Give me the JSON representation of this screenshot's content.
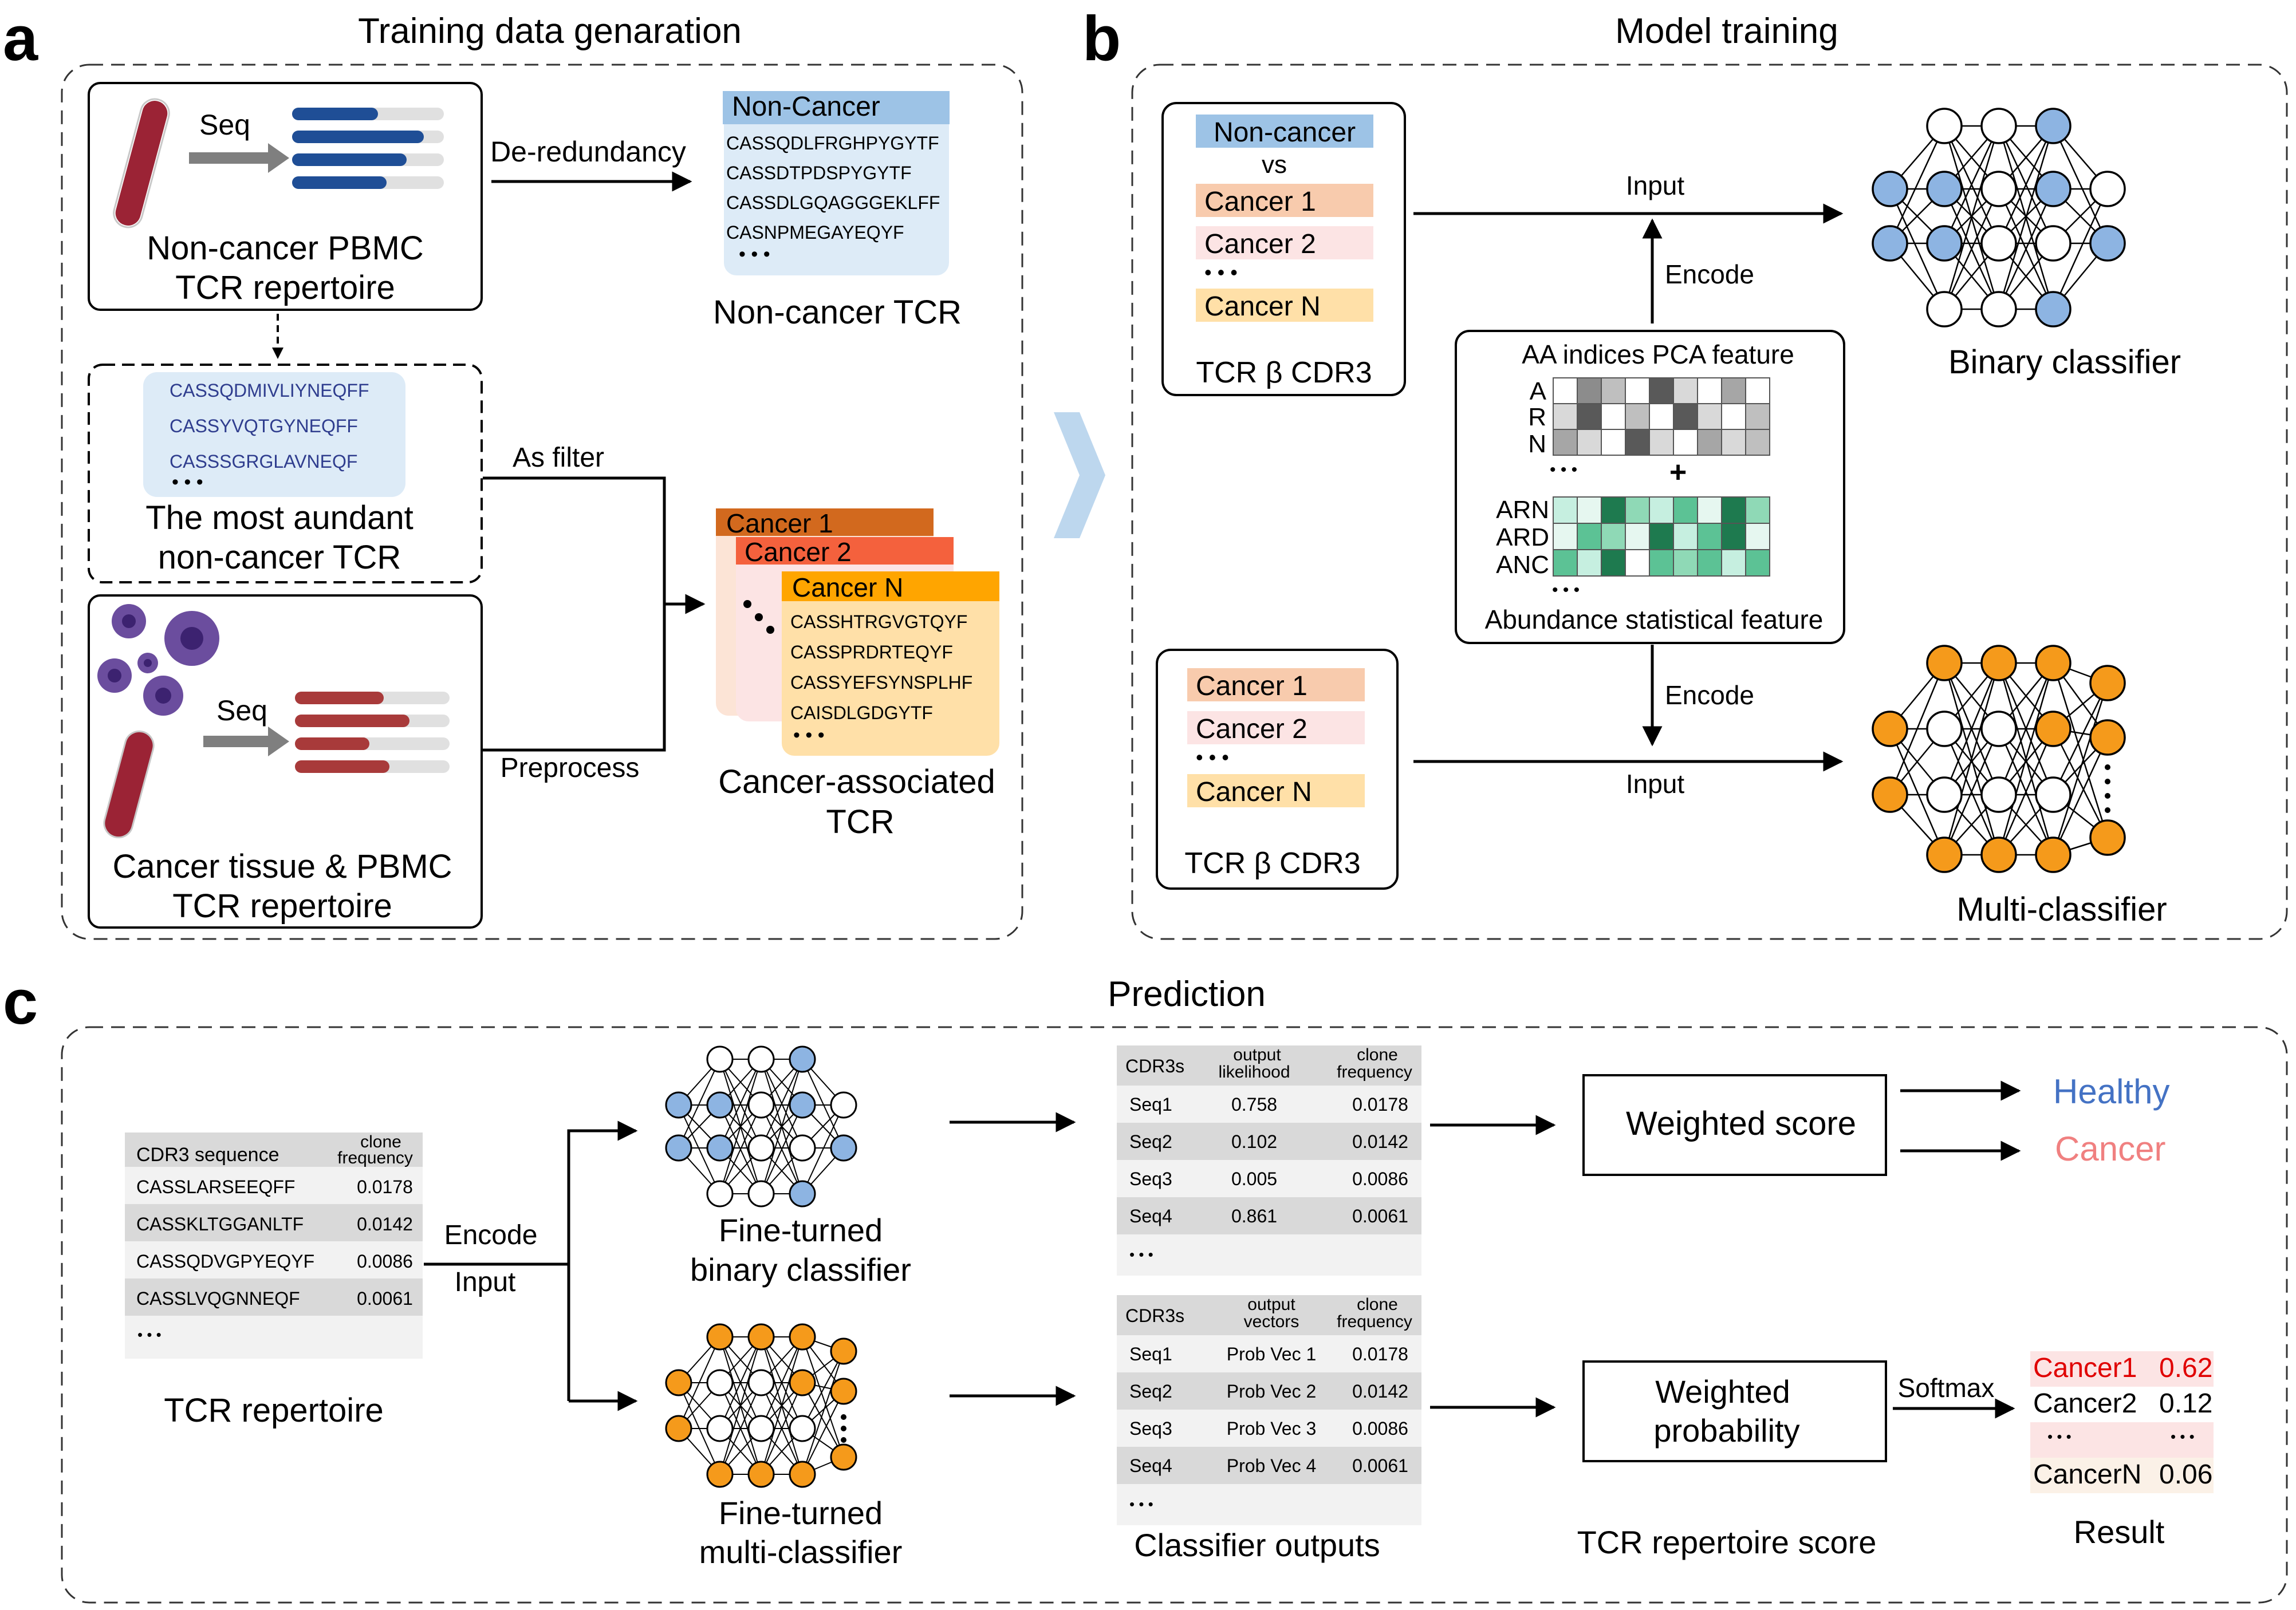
{
  "panel_a": {
    "letter": "a",
    "title": "Training data genaration",
    "seq_label_1": "Seq",
    "noncancer_source": [
      "Non-cancer PBMC",
      "TCR repertoire"
    ],
    "de_redundancy": "De-redundancy",
    "noncancer_box": {
      "header": "Non-Cancer",
      "seqs": [
        "CASSQDLFRGHPYGYTF",
        "CASSDTPDSPYGYTF",
        "CASSDLGQAGGGEKLFF",
        "CASNPMEGAYEQYF"
      ],
      "more": "• • •"
    },
    "noncancer_tcr": "Non-cancer TCR",
    "abundant_box": {
      "seqs": [
        "CASSQDMIVLIYNEQFF",
        "CASSYVQTGYNEQFF",
        "CASSSGRGLAVNEQF"
      ],
      "more": "• • •"
    },
    "abundant_label": [
      "The most aundant",
      "non-cancer TCR"
    ],
    "as_filter": "As filter",
    "preprocess": "Preprocess",
    "seq_label_2": "Seq",
    "cancer_source": [
      "Cancer tissue & PBMC",
      "TCR repertoire"
    ],
    "cancer_stack": {
      "back1": "Cancer 1",
      "back2": "Cancer 2",
      "front": "Cancer N",
      "seqs": [
        "CASSHTRGVGTQYF",
        "CASSPRDRTEQYF",
        "CASSYEFSYNSPLHF",
        "CAISDLGDGYTF"
      ],
      "more": "• • •"
    },
    "cancer_assoc": [
      "Cancer-associated",
      "TCR"
    ]
  },
  "panel_b": {
    "letter": "b",
    "title": "Model training",
    "binary_input_box": {
      "items": [
        "Non-cancer",
        "vs",
        "Cancer 1",
        "Cancer 2",
        "• • •",
        "Cancer N"
      ],
      "footer": "TCR β CDR3"
    },
    "multi_input_box": {
      "items": [
        "Cancer 1",
        "Cancer 2",
        "• • •",
        "Cancer N"
      ],
      "footer": "TCR β CDR3"
    },
    "input_top": "Input",
    "input_bottom": "Input",
    "encode_top": "Encode",
    "encode_bottom": "Encode",
    "feature_box": {
      "title": "AA indices PCA feature",
      "rows_top": [
        "A",
        "R",
        "N"
      ],
      "dots_top": "• • •",
      "plus": "+",
      "rows_bottom": [
        "ARN",
        "ARD",
        "ANC"
      ],
      "dots_bottom": "• • •",
      "footer": "Abundance statistical feature"
    },
    "binary_classifier": "Binary classifier",
    "multi_classifier": "Multi-classifier"
  },
  "panel_c": {
    "letter": "c",
    "title": "Prediction",
    "repertoire_table": {
      "col1": "CDR3 sequence",
      "col2": [
        "clone",
        "frequency"
      ],
      "rows": [
        {
          "seq": "CASSLARSEEQFF",
          "freq": "0.0178"
        },
        {
          "seq": "CASSKLTGGANLTF",
          "freq": "0.0142"
        },
        {
          "seq": "CASSQDVGPYEQYF",
          "freq": "0.0086"
        },
        {
          "seq": "CASSLVQGNNEQF",
          "freq": "0.0061"
        }
      ],
      "more": "• • •"
    },
    "repertoire_label": "TCR repertoire",
    "encode": "Encode",
    "input": "Input",
    "fine_binary": [
      "Fine-turned",
      "binary classifier"
    ],
    "fine_multi": [
      "Fine-turned",
      "multi-classifier"
    ],
    "likelihood_table": {
      "col1": "CDR3s",
      "col2": [
        "output",
        "likelihood"
      ],
      "col3": [
        "clone",
        "frequency"
      ],
      "rows": [
        {
          "id": "Seq1",
          "v": "0.758",
          "f": "0.0178"
        },
        {
          "id": "Seq2",
          "v": "0.102",
          "f": "0.0142"
        },
        {
          "id": "Seq3",
          "v": "0.005",
          "f": "0.0086"
        },
        {
          "id": "Seq4",
          "v": "0.861",
          "f": "0.0061"
        }
      ],
      "more": "• • •"
    },
    "vector_table": {
      "col1": "CDR3s",
      "col2": [
        "output",
        "vectors"
      ],
      "col3": [
        "clone",
        "frequency"
      ],
      "rows": [
        {
          "id": "Seq1",
          "v": "Prob Vec 1",
          "f": "0.0178"
        },
        {
          "id": "Seq2",
          "v": "Prob Vec 2",
          "f": "0.0142"
        },
        {
          "id": "Seq3",
          "v": "Prob Vec 3",
          "f": "0.0086"
        },
        {
          "id": "Seq4",
          "v": "Prob Vec 4",
          "f": "0.0061"
        }
      ],
      "more": "• • •"
    },
    "classifier_outputs": "Classifier outputs",
    "weighted_score": "Weighted score",
    "weighted_probability": [
      "Weighted",
      "probability"
    ],
    "healthy": "Healthy",
    "cancer": "Cancer",
    "softmax": "Softmax",
    "tcr_repertoire_score": "TCR repertoire score",
    "result_table": {
      "rows": [
        {
          "name": "Cancer1",
          "v": "0.62"
        },
        {
          "name": "Cancer2",
          "v": "0.12"
        },
        {
          "name": "• • •",
          "v": "• • •"
        },
        {
          "name": "CancerN",
          "v": "0.06"
        }
      ]
    },
    "result_label": "Result"
  },
  "colors": {
    "noncancer_blue": "#9DC3E6",
    "noncancer_light": "#DDEBF7",
    "cancer1": "#F8CBAD",
    "cancer2": "#FCE4E4",
    "cancerN": "#FFE0A8",
    "cancer1_dark": "#D2691E",
    "cancer2_dark": "#F4613D",
    "cancerN_dark": "#FFA500",
    "node_blue": "#8DB4E2",
    "node_orange": "#F59A1B",
    "healthy_text": "#4472C4",
    "cancer_text": "#F08080",
    "result_red": "#E00000",
    "arrow_light_blue": "#BDD7EE"
  }
}
